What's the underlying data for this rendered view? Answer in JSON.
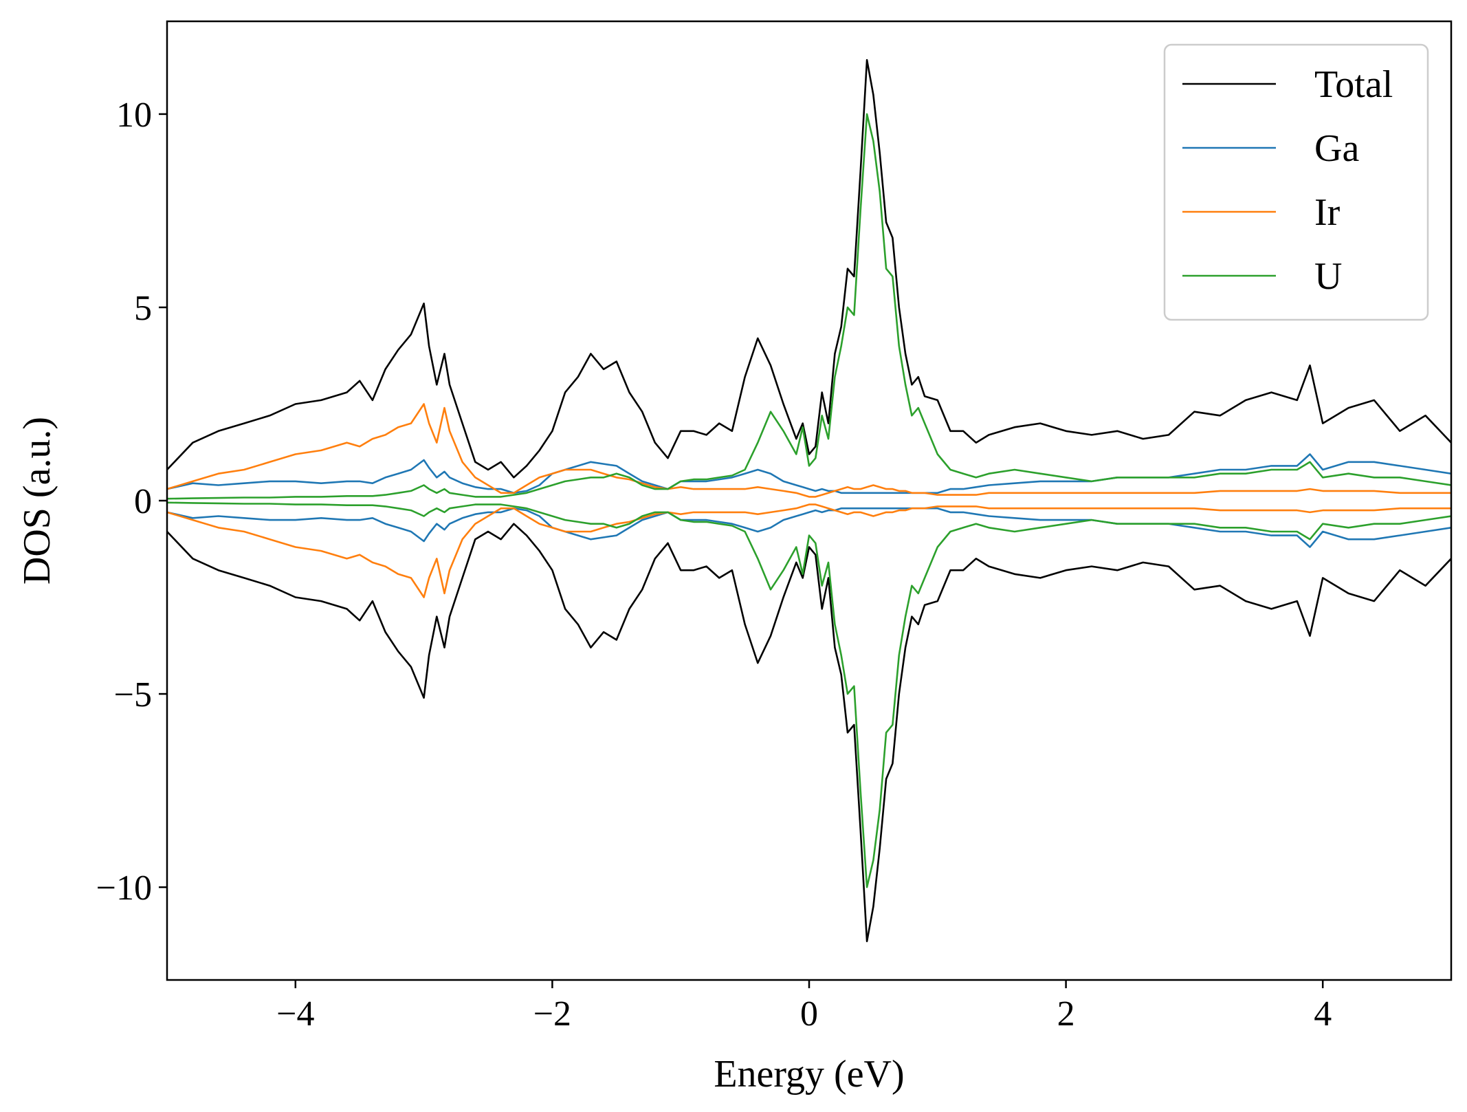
{
  "chart_data": {
    "type": "line",
    "title": "",
    "xlabel": "Energy (eV)",
    "ylabel": "DOS (a.u.)",
    "xlim": [
      -5,
      5
    ],
    "ylim": [
      -12.4,
      12.4
    ],
    "xticks": [
      -4,
      -2,
      0,
      2,
      4
    ],
    "xtick_labels": [
      "−4",
      "−2",
      "0",
      "2",
      "4"
    ],
    "yticks": [
      -10,
      -5,
      0,
      5,
      10
    ],
    "ytick_labels": [
      "−10",
      "−5",
      "0",
      "5",
      "10"
    ],
    "grid": false,
    "legend_position": "top-right",
    "symmetric_spin": true,
    "x": [
      -5.0,
      -4.8,
      -4.6,
      -4.4,
      -4.2,
      -4.0,
      -3.8,
      -3.6,
      -3.5,
      -3.4,
      -3.3,
      -3.2,
      -3.1,
      -3.0,
      -2.96,
      -2.9,
      -2.84,
      -2.8,
      -2.7,
      -2.6,
      -2.5,
      -2.4,
      -2.3,
      -2.2,
      -2.1,
      -2.0,
      -1.9,
      -1.8,
      -1.7,
      -1.6,
      -1.5,
      -1.4,
      -1.3,
      -1.2,
      -1.1,
      -1.0,
      -0.9,
      -0.8,
      -0.7,
      -0.6,
      -0.5,
      -0.4,
      -0.3,
      -0.2,
      -0.1,
      -0.05,
      0.0,
      0.05,
      0.1,
      0.15,
      0.2,
      0.25,
      0.3,
      0.35,
      0.4,
      0.45,
      0.5,
      0.55,
      0.6,
      0.65,
      0.7,
      0.75,
      0.8,
      0.85,
      0.9,
      1.0,
      1.1,
      1.2,
      1.3,
      1.4,
      1.6,
      1.8,
      2.0,
      2.2,
      2.4,
      2.6,
      2.8,
      3.0,
      3.2,
      3.4,
      3.6,
      3.8,
      3.9,
      4.0,
      4.2,
      4.4,
      4.6,
      4.8,
      5.0
    ],
    "series": [
      {
        "name": "Total",
        "color": "#000000",
        "values": [
          0.8,
          1.5,
          1.8,
          2.0,
          2.2,
          2.5,
          2.6,
          2.8,
          3.1,
          2.6,
          3.4,
          3.9,
          4.3,
          5.1,
          4.0,
          3.0,
          3.8,
          3.0,
          2.0,
          1.0,
          0.8,
          1.0,
          0.6,
          0.9,
          1.3,
          1.8,
          2.8,
          3.2,
          3.8,
          3.4,
          3.6,
          2.8,
          2.3,
          1.5,
          1.1,
          1.8,
          1.8,
          1.7,
          2.0,
          1.8,
          3.2,
          4.2,
          3.5,
          2.5,
          1.6,
          2.0,
          1.2,
          1.4,
          2.8,
          2.0,
          3.8,
          4.5,
          6.0,
          5.8,
          8.5,
          11.4,
          10.5,
          9.0,
          7.2,
          6.8,
          5.0,
          3.8,
          3.0,
          3.2,
          2.7,
          2.6,
          1.8,
          1.8,
          1.5,
          1.7,
          1.9,
          2.0,
          1.8,
          1.7,
          1.8,
          1.6,
          1.7,
          2.3,
          2.2,
          2.6,
          2.8,
          2.6,
          3.5,
          2.0,
          2.4,
          2.6,
          1.8,
          2.2,
          1.5
        ]
      },
      {
        "name": "Ga",
        "color": "#1f77b4",
        "values": [
          0.3,
          0.45,
          0.4,
          0.45,
          0.5,
          0.5,
          0.45,
          0.5,
          0.5,
          0.45,
          0.6,
          0.7,
          0.8,
          1.05,
          0.85,
          0.6,
          0.75,
          0.6,
          0.45,
          0.35,
          0.3,
          0.3,
          0.2,
          0.25,
          0.4,
          0.7,
          0.8,
          0.9,
          1.0,
          0.95,
          0.9,
          0.7,
          0.5,
          0.4,
          0.3,
          0.5,
          0.5,
          0.5,
          0.55,
          0.6,
          0.7,
          0.8,
          0.7,
          0.5,
          0.4,
          0.35,
          0.3,
          0.25,
          0.3,
          0.25,
          0.25,
          0.2,
          0.2,
          0.2,
          0.2,
          0.2,
          0.2,
          0.2,
          0.2,
          0.2,
          0.2,
          0.2,
          0.2,
          0.2,
          0.2,
          0.2,
          0.3,
          0.3,
          0.35,
          0.4,
          0.45,
          0.5,
          0.5,
          0.5,
          0.6,
          0.6,
          0.6,
          0.7,
          0.8,
          0.8,
          0.9,
          0.9,
          1.2,
          0.8,
          1.0,
          1.0,
          0.9,
          0.8,
          0.7
        ]
      },
      {
        "name": "Ir",
        "color": "#ff7f0e",
        "values": [
          0.3,
          0.5,
          0.7,
          0.8,
          1.0,
          1.2,
          1.3,
          1.5,
          1.4,
          1.6,
          1.7,
          1.9,
          2.0,
          2.5,
          2.0,
          1.5,
          2.4,
          1.8,
          1.0,
          0.6,
          0.4,
          0.2,
          0.2,
          0.4,
          0.6,
          0.7,
          0.8,
          0.8,
          0.8,
          0.7,
          0.6,
          0.55,
          0.45,
          0.35,
          0.3,
          0.35,
          0.3,
          0.3,
          0.3,
          0.3,
          0.3,
          0.35,
          0.3,
          0.25,
          0.2,
          0.15,
          0.1,
          0.1,
          0.15,
          0.2,
          0.25,
          0.3,
          0.35,
          0.3,
          0.3,
          0.35,
          0.4,
          0.35,
          0.3,
          0.3,
          0.25,
          0.25,
          0.2,
          0.2,
          0.2,
          0.15,
          0.15,
          0.15,
          0.15,
          0.2,
          0.2,
          0.2,
          0.2,
          0.2,
          0.2,
          0.2,
          0.2,
          0.2,
          0.25,
          0.25,
          0.25,
          0.25,
          0.3,
          0.25,
          0.25,
          0.25,
          0.2,
          0.2,
          0.2
        ]
      },
      {
        "name": "U",
        "color": "#2ca02c",
        "values": [
          0.05,
          0.06,
          0.07,
          0.08,
          0.08,
          0.1,
          0.1,
          0.12,
          0.12,
          0.12,
          0.15,
          0.2,
          0.25,
          0.4,
          0.3,
          0.2,
          0.3,
          0.2,
          0.15,
          0.1,
          0.1,
          0.1,
          0.15,
          0.2,
          0.3,
          0.4,
          0.5,
          0.55,
          0.6,
          0.6,
          0.7,
          0.6,
          0.4,
          0.3,
          0.3,
          0.5,
          0.55,
          0.55,
          0.6,
          0.65,
          0.8,
          1.5,
          2.3,
          1.8,
          1.2,
          1.9,
          0.9,
          1.1,
          2.2,
          1.6,
          3.2,
          4.0,
          5.0,
          4.8,
          7.5,
          10.0,
          9.3,
          8.0,
          6.0,
          5.8,
          4.0,
          3.0,
          2.2,
          2.4,
          2.0,
          1.2,
          0.8,
          0.7,
          0.6,
          0.7,
          0.8,
          0.7,
          0.6,
          0.5,
          0.6,
          0.6,
          0.6,
          0.6,
          0.7,
          0.7,
          0.8,
          0.8,
          1.0,
          0.6,
          0.7,
          0.6,
          0.6,
          0.5,
          0.4
        ]
      }
    ]
  }
}
